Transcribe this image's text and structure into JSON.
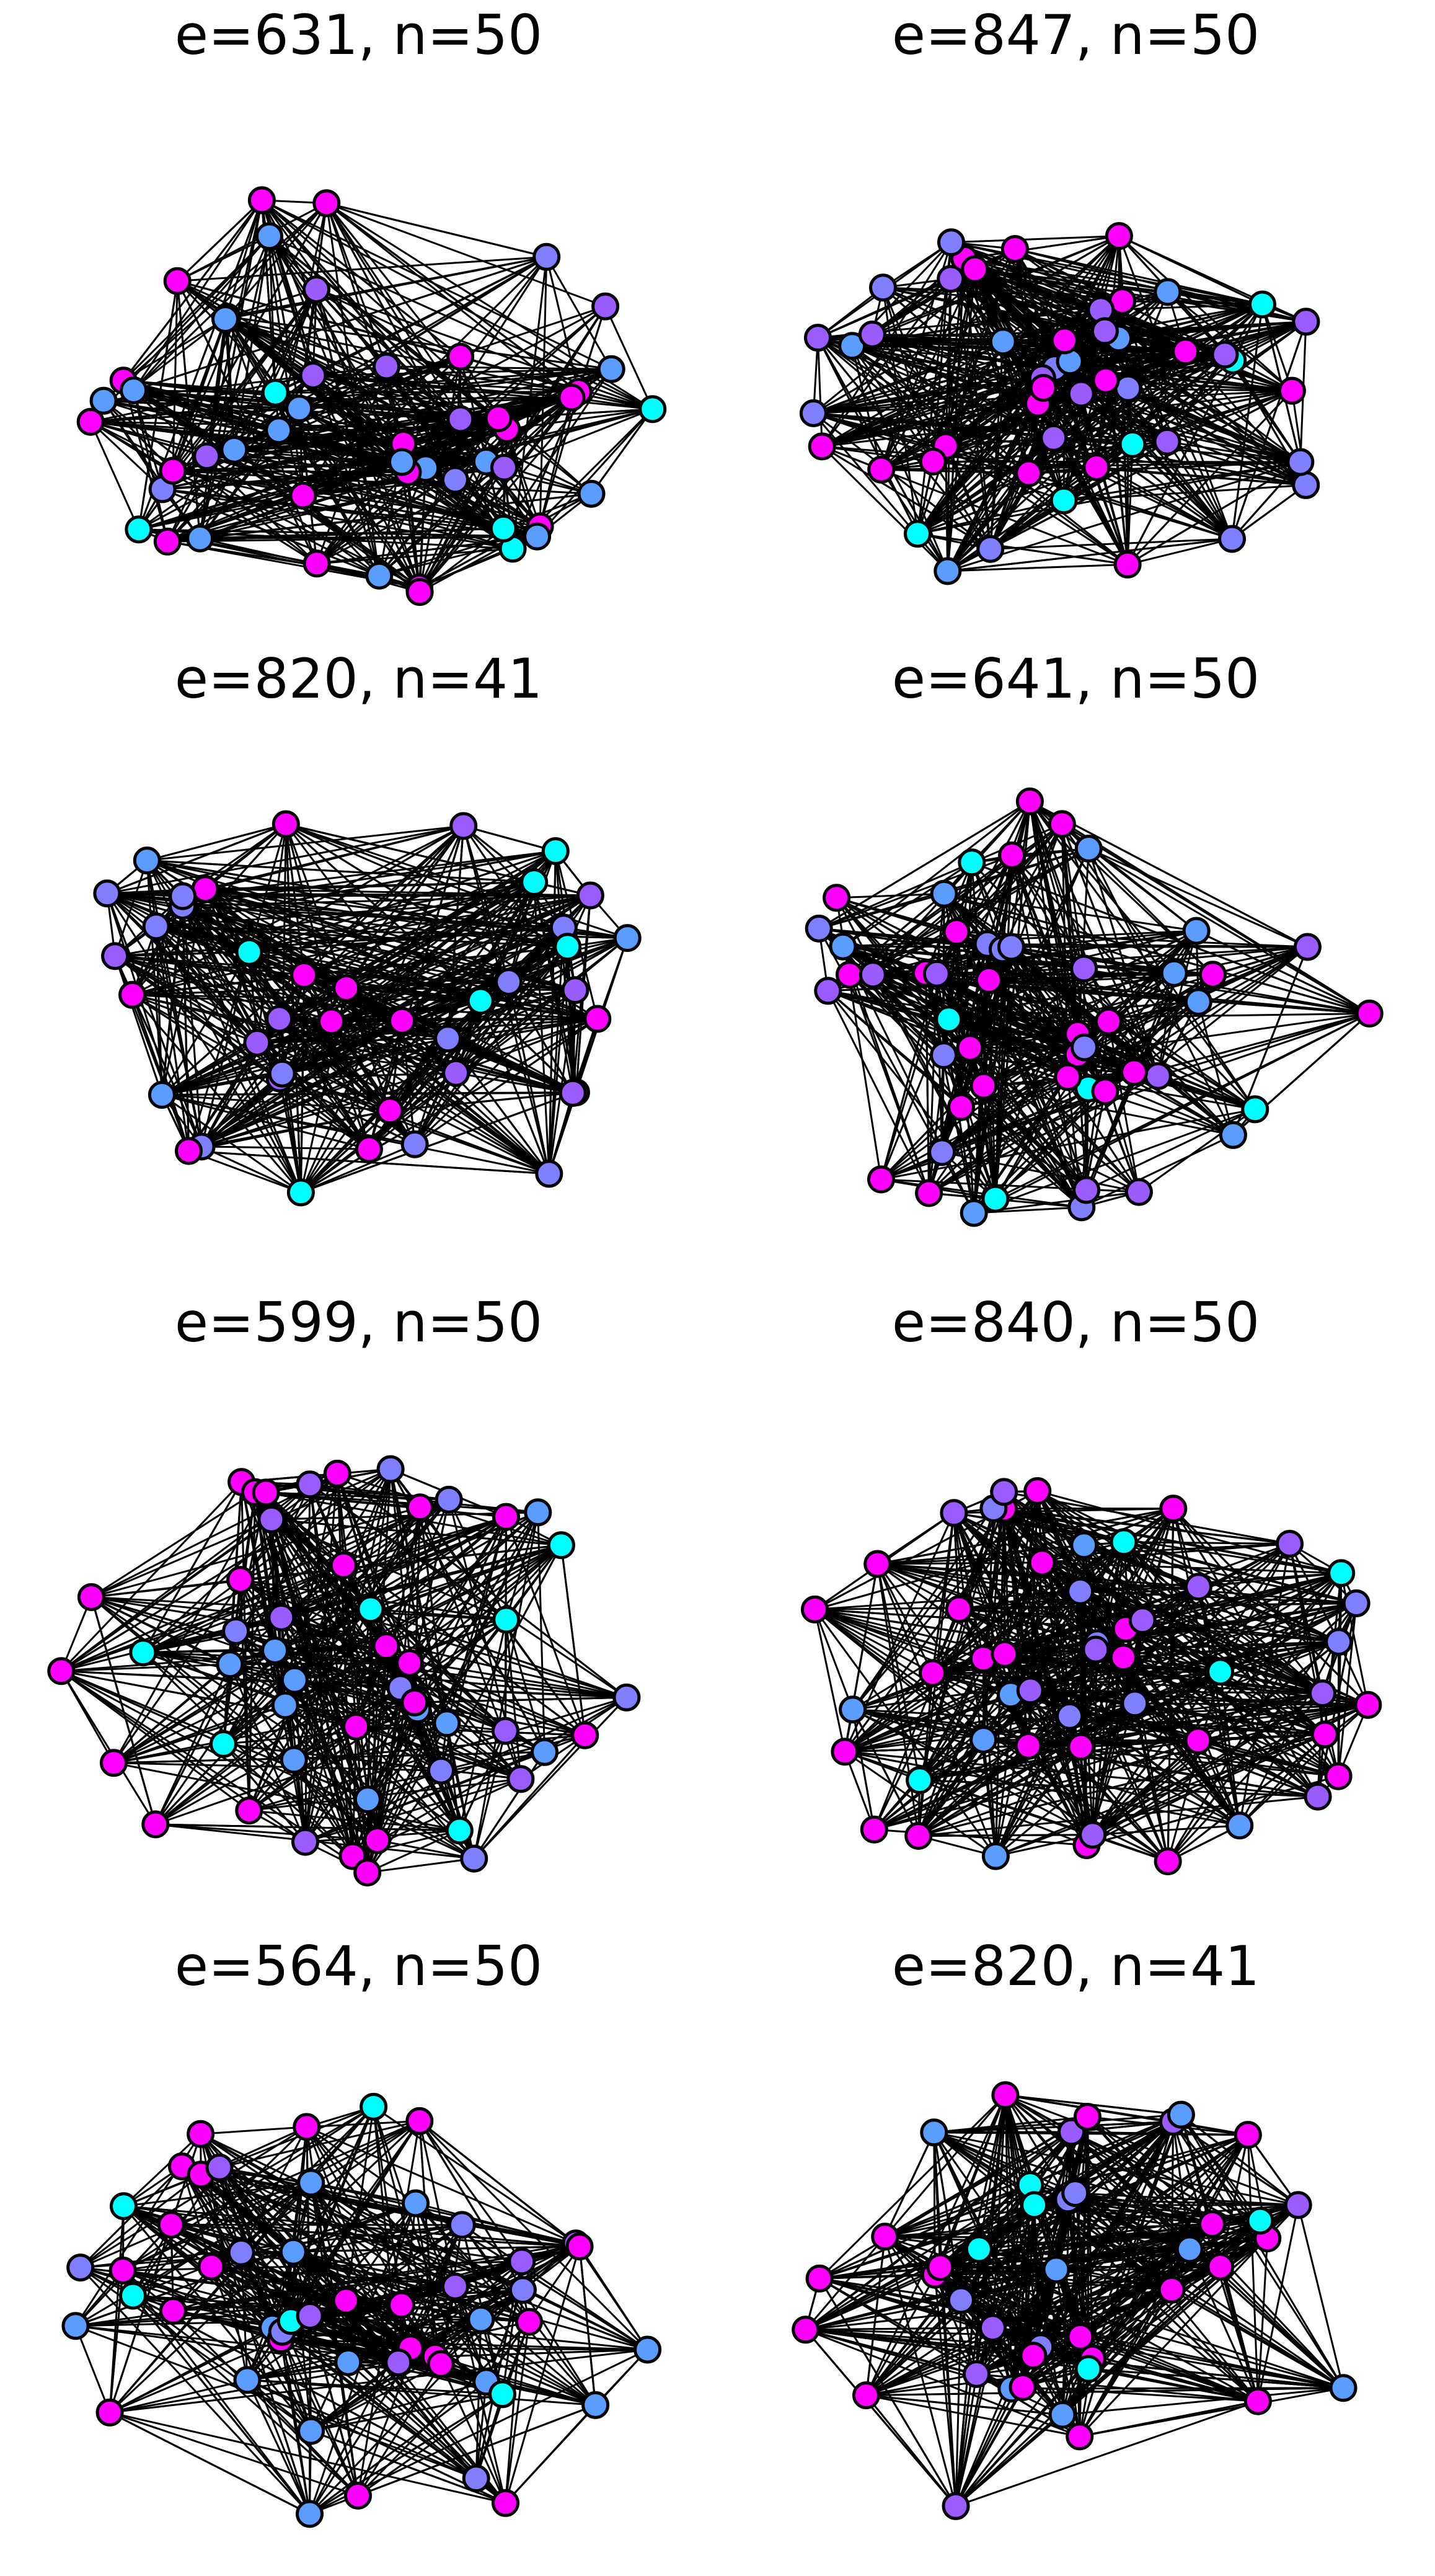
{
  "figure": {
    "description_colors": {
      "magenta": "#ff00ff",
      "cyan": "#00ffff",
      "blue": "#5b9cff",
      "purple": "#9b5cff",
      "violet": "#7f7fff",
      "edge": "#000000"
    },
    "panels": [
      {
        "title": "e=631, n=50"
      },
      {
        "title": "e=847, n=50"
      },
      {
        "title": "e=820, n=41"
      },
      {
        "title": "e=641, n=50"
      },
      {
        "title": "e=599, n=50"
      },
      {
        "title": "e=840, n=50"
      },
      {
        "title": "e=564, n=50"
      },
      {
        "title": "e=820, n=41"
      }
    ]
  }
}
